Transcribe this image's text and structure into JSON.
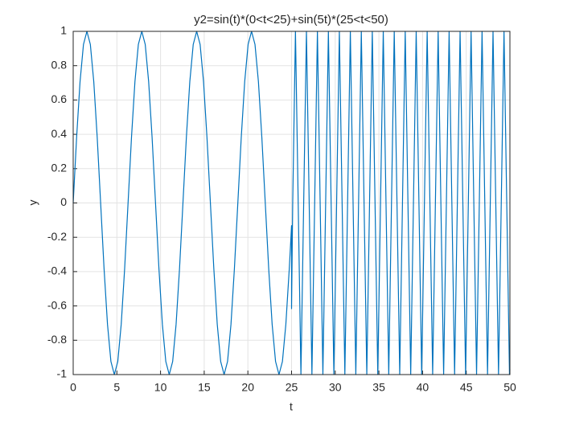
{
  "chart_data": {
    "type": "line",
    "title": "y2=sin(t)*(0<t<25)+sin(5t)*(25<t<50)",
    "x_label": "t",
    "y_label": "y",
    "color": "#0072bd",
    "grid": true,
    "xlim": [
      0,
      50
    ],
    "ylim": [
      -1,
      1
    ],
    "xticks": [
      0,
      5,
      10,
      15,
      20,
      25,
      30,
      35,
      40,
      45,
      50
    ],
    "yticks": [
      -1,
      -0.8,
      -0.6,
      -0.4,
      -0.2,
      0,
      0.2,
      0.4,
      0.6,
      0.8,
      1
    ],
    "x": [
      0,
      0.393,
      0.785,
      1.178,
      1.571,
      1.963,
      2.356,
      2.749,
      3.142,
      3.534,
      3.927,
      4.32,
      4.712,
      5.105,
      5.498,
      5.89,
      6.283,
      6.676,
      7.069,
      7.461,
      7.854,
      8.247,
      8.639,
      9.032,
      9.425,
      9.817,
      10.21,
      10.603,
      10.996,
      11.388,
      11.781,
      12.174,
      12.566,
      12.959,
      13.352,
      13.744,
      14.137,
      14.53,
      14.923,
      15.315,
      15.708,
      16.101,
      16.493,
      16.886,
      17.279,
      17.671,
      18.064,
      18.457,
      18.85,
      19.242,
      19.635,
      20.028,
      20.42,
      20.813,
      21.206,
      21.598,
      21.991,
      22.384,
      22.777,
      23.169,
      23.562,
      23.955,
      24.347,
      24.74,
      25,
      25,
      25.133,
      25.447,
      25.761,
      26.075,
      26.389,
      26.704,
      27.018,
      27.332,
      27.646,
      27.96,
      28.274,
      28.588,
      28.903,
      29.217,
      29.531,
      29.845,
      30.159,
      30.473,
      30.788,
      31.102,
      31.416,
      31.73,
      32.044,
      32.358,
      32.673,
      32.987,
      33.301,
      33.615,
      33.929,
      34.243,
      34.558,
      34.872,
      35.186,
      35.5,
      35.814,
      36.128,
      36.442,
      36.757,
      37.071,
      37.385,
      37.699,
      38.013,
      38.327,
      38.642,
      38.956,
      39.27,
      39.584,
      39.898,
      40.212,
      40.527,
      40.841,
      41.155,
      41.469,
      41.783,
      42.097,
      42.412,
      42.726,
      43.04,
      43.354,
      43.668,
      43.982,
      44.296,
      44.611,
      44.925,
      45.239,
      45.553,
      45.867,
      46.181,
      46.496,
      46.81,
      47.124,
      47.438,
      47.752,
      48.066,
      48.381,
      48.695,
      49.009,
      49.323,
      49.637,
      49.951,
      50
    ],
    "values": [
      0,
      0.383,
      0.707,
      0.924,
      1,
      0.924,
      0.707,
      0.383,
      0,
      -0.383,
      -0.707,
      -0.924,
      -1,
      -0.924,
      -0.707,
      -0.383,
      0,
      0.383,
      0.707,
      0.924,
      1,
      0.924,
      0.707,
      0.383,
      0,
      -0.383,
      -0.707,
      -0.924,
      -1,
      -0.924,
      -0.707,
      -0.383,
      0,
      0.383,
      0.707,
      0.924,
      1,
      0.924,
      0.707,
      0.383,
      0,
      -0.383,
      -0.707,
      -0.924,
      -1,
      -0.924,
      -0.707,
      -0.383,
      0,
      0.383,
      0.707,
      0.924,
      1,
      0.924,
      0.707,
      0.383,
      0,
      -0.383,
      -0.707,
      -0.924,
      -1,
      -0.924,
      -0.707,
      -0.383,
      -0.132,
      -0.616,
      0,
      1,
      0,
      -1,
      0,
      1,
      0,
      -1,
      0,
      1,
      0,
      -1,
      0,
      1,
      0,
      -1,
      0,
      1,
      0,
      -1,
      0,
      1,
      0,
      -1,
      0,
      1,
      0,
      -1,
      0,
      1,
      0,
      -1,
      0,
      1,
      0,
      -1,
      0,
      1,
      0,
      -1,
      0,
      1,
      0,
      -1,
      0,
      1,
      0,
      -1,
      0,
      1,
      0,
      -1,
      0,
      1,
      0,
      -1,
      0,
      1,
      0,
      -1,
      0,
      1,
      0,
      -1,
      0,
      1,
      0,
      -1,
      0,
      1,
      0,
      -1,
      0,
      1,
      0,
      -1,
      0,
      1,
      0,
      -1,
      -0.97
    ]
  }
}
